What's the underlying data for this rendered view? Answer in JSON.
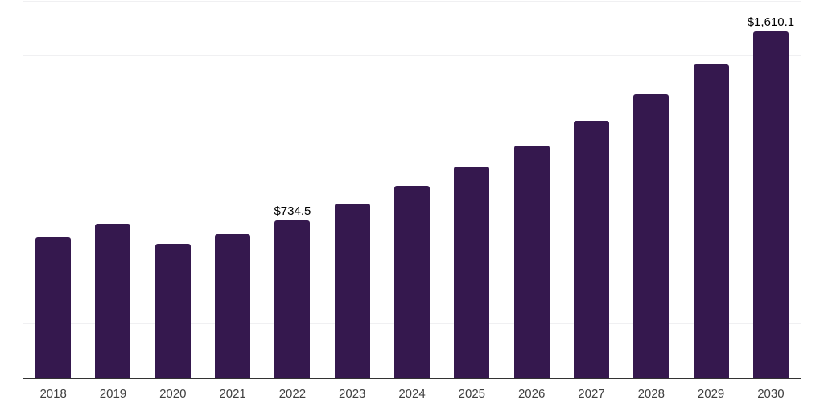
{
  "chart_data": {
    "type": "bar",
    "title": "",
    "xlabel": "",
    "ylabel": "",
    "categories": [
      "2018",
      "2019",
      "2020",
      "2021",
      "2022",
      "2023",
      "2024",
      "2025",
      "2026",
      "2027",
      "2028",
      "2029",
      "2030"
    ],
    "values": [
      654,
      718,
      623,
      668,
      734.5,
      813,
      894,
      984,
      1082,
      1195,
      1320,
      1460,
      1610.1
    ],
    "annotations": [
      {
        "category": "2022",
        "text": "$734.5"
      },
      {
        "category": "2030",
        "text": "$1,610.1"
      }
    ],
    "ylim": [
      0,
      1750
    ],
    "grid": {
      "horizontal": true,
      "interval": 250,
      "y_tick_labels_visible": false
    },
    "legend_position": "none"
  },
  "style": {
    "bar_color": "#35184e",
    "axis_color": "#333333",
    "gridline_color": "#f0f0f2",
    "tick_label_color": "#404040",
    "annotation_color": "#000000",
    "background_color": "#ffffff"
  }
}
